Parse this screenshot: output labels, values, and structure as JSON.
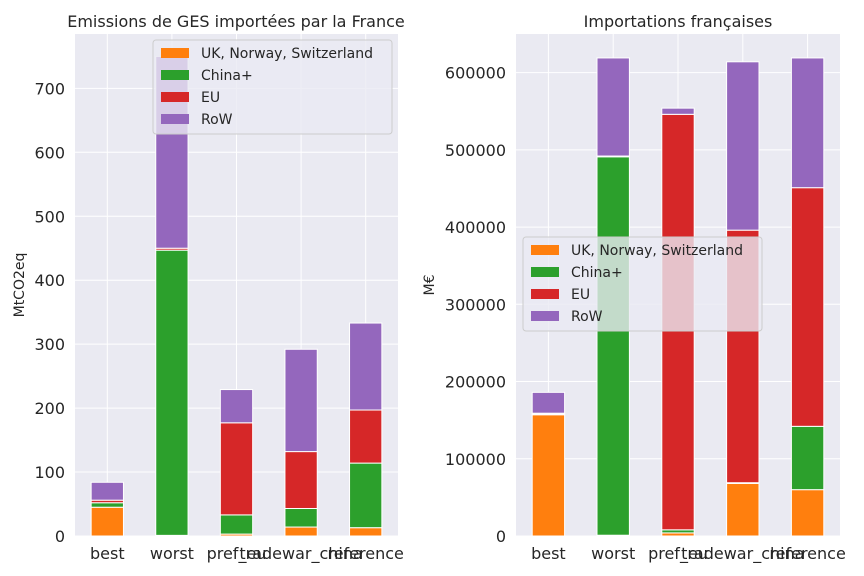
{
  "chart_data": [
    {
      "type": "bar",
      "stacked": true,
      "title": "Emissions de GES importées par la France",
      "xlabel": "",
      "ylabel": "MtCO2eq",
      "categories": [
        "best",
        "worst",
        "pref_eu",
        "tradewar_china",
        "reference"
      ],
      "ylim": [
        0,
        785
      ],
      "yticks": [
        0,
        100,
        200,
        300,
        400,
        500,
        600,
        700
      ],
      "grid": true,
      "legend_position": "top-right",
      "series": [
        {
          "name": "UK, Norway, Switzerland",
          "color": "#ff7f0e",
          "values": [
            45,
            1,
            3,
            14,
            13
          ]
        },
        {
          "name": "China+",
          "color": "#2ca02c",
          "values": [
            7,
            446,
            30,
            29,
            101
          ]
        },
        {
          "name": "EU",
          "color": "#d62728",
          "values": [
            4,
            3,
            144,
            89,
            83
          ]
        },
        {
          "name": "RoW",
          "color": "#9467bd",
          "values": [
            28,
            300,
            52,
            160,
            136
          ]
        }
      ]
    },
    {
      "type": "bar",
      "stacked": true,
      "title": "Importations françaises",
      "xlabel": "",
      "ylabel": "M€",
      "categories": [
        "best",
        "worst",
        "pref_eu",
        "tradewar_china",
        "reference"
      ],
      "ylim": [
        0,
        650000
      ],
      "yticks": [
        0,
        100000,
        200000,
        300000,
        400000,
        500000,
        600000
      ],
      "grid": true,
      "legend_position": "center-left",
      "series": [
        {
          "name": "UK, Norway, Switzerland",
          "color": "#ff7f0e",
          "values": [
            157000,
            1000,
            4000,
            68000,
            60000
          ]
        },
        {
          "name": "China+",
          "color": "#2ca02c",
          "values": [
            1000,
            490000,
            4000,
            1000,
            82000
          ]
        },
        {
          "name": "EU",
          "color": "#d62728",
          "values": [
            1000,
            1000,
            538000,
            327000,
            309000
          ]
        },
        {
          "name": "RoW",
          "color": "#9467bd",
          "values": [
            27000,
            127000,
            8000,
            218000,
            168000
          ]
        }
      ]
    }
  ]
}
